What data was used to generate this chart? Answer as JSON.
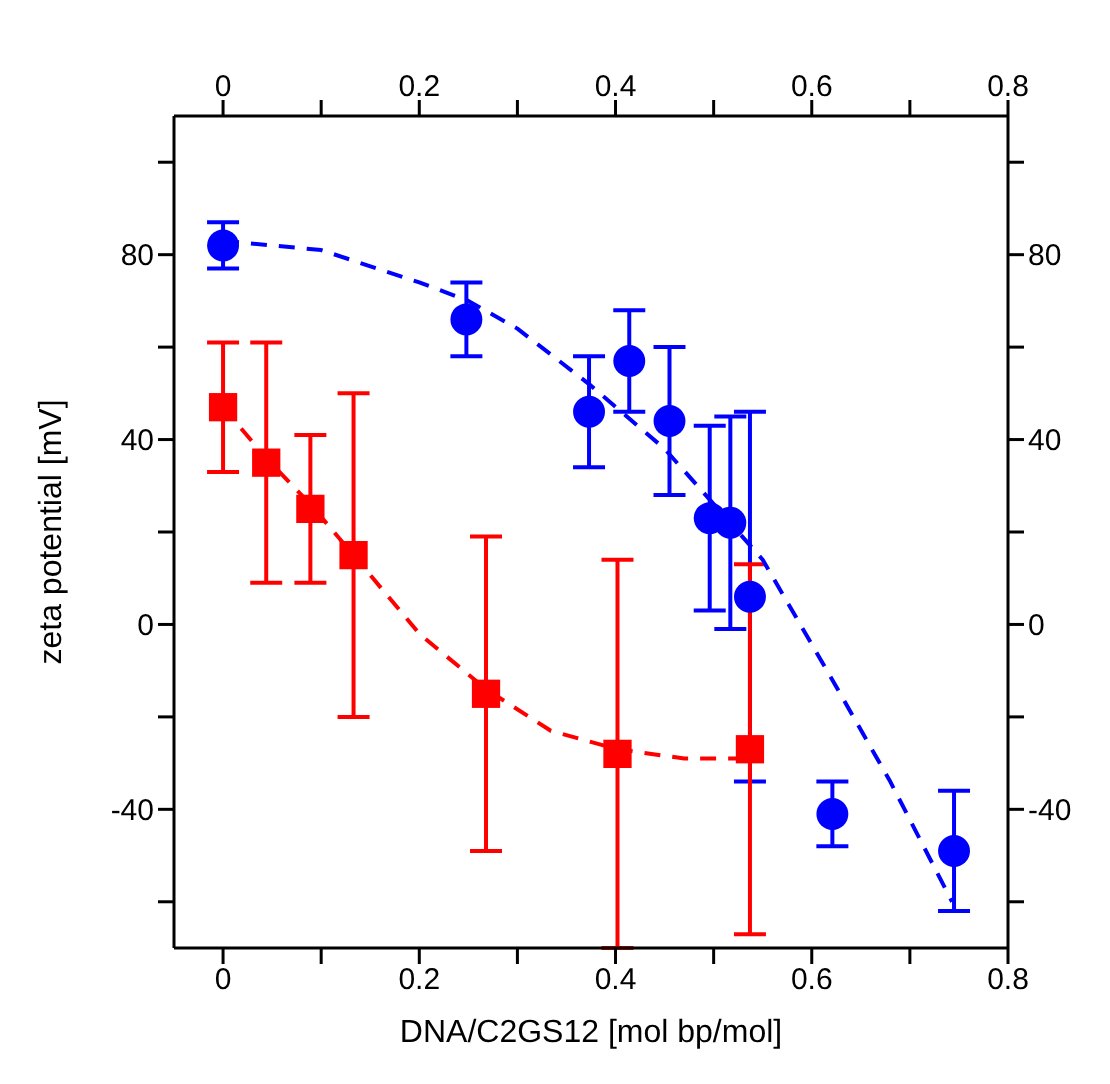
{
  "chart_data": {
    "type": "scatter",
    "xlabel": "DNA/C2GS12 [mol bp/mol]",
    "ylabel": "zeta potential [mV]",
    "xlim": [
      -0.05,
      0.8
    ],
    "xticks": [
      0,
      {
        "value": 0.1,
        "label": null
      },
      0.2,
      {
        "value": 0.3,
        "label": null
      },
      0.4,
      {
        "value": 0.5,
        "label": null
      },
      0.6,
      {
        "value": 0.7,
        "label": null
      },
      0.8
    ],
    "x2lim": [
      -0.05,
      0.8
    ],
    "x2ticks": [
      0,
      {
        "value": 0.1,
        "label": null
      },
      0.2,
      {
        "value": 0.3,
        "label": null
      },
      0.4,
      {
        "value": 0.5,
        "label": null
      },
      0.6,
      {
        "value": 0.7,
        "label": null
      },
      0.8
    ],
    "ylim": [
      -70,
      110
    ],
    "yticks": [
      {
        "value": -60,
        "label": null
      },
      -40,
      {
        "value": -20,
        "label": null
      },
      0,
      {
        "value": 20,
        "label": null
      },
      40,
      {
        "value": 60,
        "label": null
      },
      80,
      {
        "value": 100,
        "label": null
      }
    ],
    "y2lim": [
      -70,
      110
    ],
    "y2ticks": [
      {
        "value": -60,
        "label": null
      },
      -40,
      {
        "value": -20,
        "label": null
      },
      0,
      {
        "value": 20,
        "label": null
      },
      40,
      {
        "value": 60,
        "label": null
      },
      80,
      {
        "value": 100,
        "label": null
      }
    ],
    "grid": false,
    "series": [
      {
        "type": "scatter",
        "marker": "circle",
        "color": "#0000ff",
        "x": [
          0,
          0.248,
          0.373,
          0.414,
          0.455,
          0.496,
          0.517,
          0.537,
          0.621,
          0.745
        ],
        "values": [
          82,
          66,
          46,
          57,
          44,
          23,
          22,
          6,
          -41,
          -49
        ],
        "errors": [
          5,
          8,
          12,
          11,
          16,
          20,
          23,
          40,
          7,
          13
        ]
      },
      {
        "type": "scatter",
        "marker": "square",
        "color": "#ff0000",
        "x": [
          0,
          0.044,
          0.089,
          0.133,
          0.268,
          0.402,
          0.537
        ],
        "values": [
          47,
          35,
          25,
          15,
          -15,
          -28,
          -27
        ],
        "errors": [
          14,
          26,
          16,
          35,
          34,
          42,
          40
        ]
      },
      {
        "type": "line",
        "marker": "none",
        "line_style": "dashed",
        "color": "#0000ff",
        "x": [
          0,
          0.1,
          0.2,
          0.25,
          0.3,
          0.373,
          0.45,
          0.496,
          0.55,
          0.621,
          0.68,
          0.743
        ],
        "values": [
          83,
          81,
          74,
          70,
          64,
          52,
          38,
          27,
          14,
          -12,
          -34,
          -60
        ]
      },
      {
        "type": "line",
        "marker": "none",
        "line_style": "dashed",
        "color": "#ff0000",
        "x": [
          0,
          0.044,
          0.089,
          0.133,
          0.2,
          0.268,
          0.334,
          0.402,
          0.47,
          0.537
        ],
        "values": [
          47,
          36,
          26,
          15,
          -2,
          -14,
          -23,
          -27,
          -29,
          -29
        ]
      }
    ]
  }
}
